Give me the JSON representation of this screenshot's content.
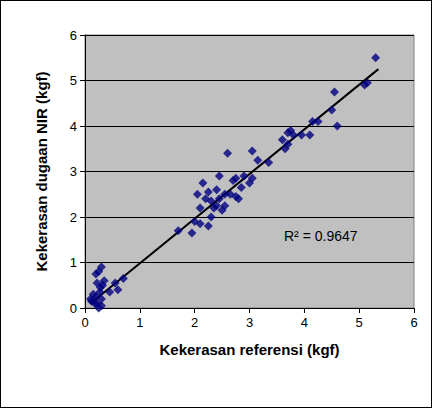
{
  "chart_data": {
    "type": "scatter",
    "xlabel": "Kekerasan referensi (kgf)",
    "ylabel": "Kekerasan dugaan NIR (kgf)",
    "x": [
      0.1,
      0.12,
      0.15,
      0.18,
      0.2,
      0.2,
      0.22,
      0.25,
      0.25,
      0.28,
      0.3,
      0.3,
      0.32,
      0.35,
      0.22,
      0.27,
      0.45,
      0.55,
      0.6,
      0.7,
      0.3,
      1.7,
      1.95,
      2.0,
      2.05,
      2.1,
      2.1,
      2.15,
      2.2,
      2.25,
      2.25,
      2.3,
      2.3,
      2.35,
      2.4,
      2.4,
      2.45,
      2.45,
      2.5,
      2.55,
      2.55,
      2.6,
      2.65,
      2.7,
      2.75,
      2.75,
      2.8,
      2.85,
      2.9,
      3.0,
      3.05,
      3.05,
      3.15,
      3.35,
      3.6,
      3.65,
      3.7,
      3.7,
      3.75,
      3.8,
      3.95,
      4.1,
      4.15,
      4.25,
      4.5,
      4.55,
      4.6,
      5.1,
      5.15,
      5.3
    ],
    "values": [
      0.2,
      0.15,
      0.3,
      0.1,
      0.75,
      0.25,
      0.55,
      0.0,
      0.8,
      0.45,
      0.9,
      0.2,
      0.5,
      0.6,
      0.1,
      0.35,
      0.35,
      0.55,
      0.4,
      0.65,
      0.05,
      1.7,
      1.65,
      1.9,
      2.5,
      2.2,
      1.85,
      2.75,
      2.4,
      2.55,
      1.8,
      2.0,
      2.35,
      2.2,
      2.25,
      2.6,
      2.9,
      2.4,
      2.15,
      2.25,
      2.5,
      3.4,
      2.5,
      2.8,
      2.45,
      2.85,
      2.4,
      2.65,
      2.9,
      2.75,
      3.45,
      2.85,
      3.25,
      3.2,
      3.7,
      3.5,
      3.6,
      3.85,
      3.9,
      3.8,
      3.8,
      3.8,
      4.1,
      4.1,
      4.35,
      4.75,
      4.0,
      4.9,
      4.95,
      5.5
    ],
    "color": "#000080",
    "marker": "diamond",
    "fit_line": {
      "x": [
        0.1,
        5.35
      ],
      "y": [
        0.1,
        5.25
      ]
    },
    "annotations": [
      "R² = 0.9647"
    ],
    "xlim": [
      0,
      6
    ],
    "ylim": [
      0,
      6
    ],
    "xticks": [
      0,
      1,
      2,
      3,
      4,
      5,
      6
    ],
    "yticks": [
      0,
      1,
      2,
      3,
      4,
      5,
      6
    ],
    "grid": true
  }
}
